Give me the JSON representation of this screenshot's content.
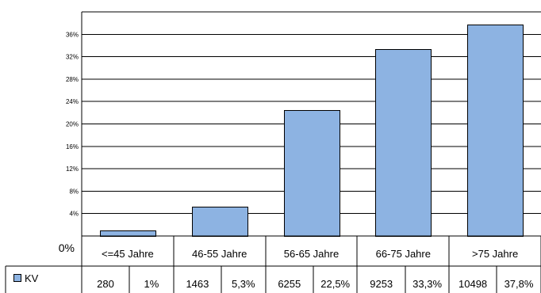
{
  "chart_data": {
    "type": "bar",
    "categories": [
      "<=45 Jahre",
      "46-55 Jahre",
      "56-65 Jahre",
      "66-75 Jahre",
      ">75 Jahre"
    ],
    "series": [
      {
        "name": "KV",
        "values": [
          1,
          5.3,
          22.5,
          33.3,
          37.8
        ],
        "counts": [
          "280",
          "1463",
          "6255",
          "9253",
          "10498"
        ],
        "percent_labels": [
          "1%",
          "5,3%",
          "22,5%",
          "33,3%",
          "37,8%"
        ],
        "color": "#8DB3E2"
      }
    ],
    "yticks": [
      {
        "value": 0,
        "label": "0%"
      },
      {
        "value": 4,
        "label": "4%"
      },
      {
        "value": 8,
        "label": "8%"
      },
      {
        "value": 12,
        "label": "12%"
      },
      {
        "value": 16,
        "label": "16%"
      },
      {
        "value": 20,
        "label": "20%"
      },
      {
        "value": 24,
        "label": "24%"
      },
      {
        "value": 28,
        "label": "28%"
      },
      {
        "value": 32,
        "label": "32%"
      },
      {
        "value": 36,
        "label": "36%"
      }
    ],
    "ylim": [
      0,
      40
    ],
    "title": "",
    "xlabel": "",
    "ylabel": "",
    "grid": true,
    "legend": "bottom-left, data table"
  }
}
